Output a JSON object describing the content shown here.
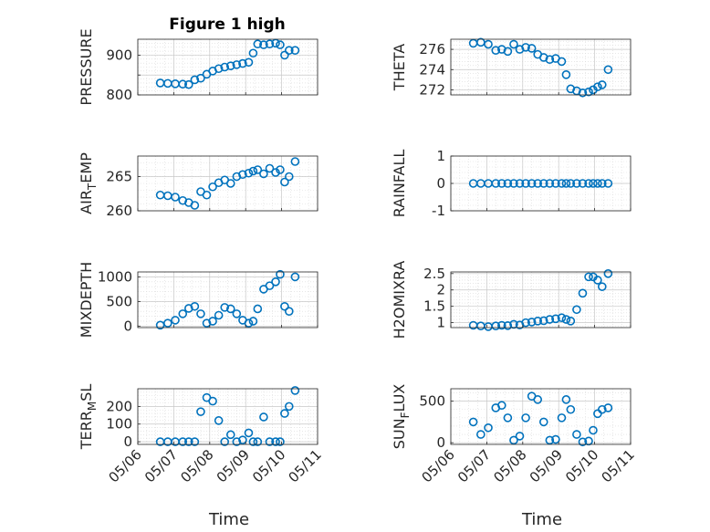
{
  "figure": {
    "title": "Figure 1 high",
    "x_tick_labels": [
      "05/06",
      "05/07",
      "05/08",
      "05/09",
      "05/10",
      "05/11"
    ],
    "x_label": "Time"
  },
  "chart_data": [
    {
      "type": "scatter",
      "ylabel": "PRESSURE",
      "yticks": [
        800,
        850,
        900
      ],
      "ytick_labels": [
        "800",
        "",
        "900"
      ],
      "ylim": [
        800,
        940
      ],
      "xlim": [
        "05/06",
        "05/11"
      ],
      "grid": true,
      "marker": "circle",
      "color": "#0072BD",
      "x": [
        "05/06 15:00",
        "05/06 20:00",
        "05/07 01:00",
        "05/07 06:00",
        "05/07 10:00",
        "05/07 14:00",
        "05/07 18:00",
        "05/07 22:00",
        "05/08 02:00",
        "05/08 06:00",
        "05/08 10:00",
        "05/08 14:00",
        "05/08 18:00",
        "05/08 22:00",
        "05/09 02:00",
        "05/09 05:00",
        "05/09 08:00",
        "05/09 12:00",
        "05/09 16:00",
        "05/09 20:00",
        "05/09 23:00",
        "05/10 02:00",
        "05/10 05:00",
        "05/10 09:00"
      ],
      "y": [
        830,
        829,
        828,
        827,
        826,
        838,
        842,
        852,
        860,
        866,
        870,
        873,
        876,
        879,
        882,
        905,
        928,
        926,
        928,
        930,
        926,
        900,
        912,
        912
      ]
    },
    {
      "type": "scatter",
      "ylabel": "THETA",
      "yticks": [
        272,
        274,
        276
      ],
      "ytick_labels": [
        "272",
        "274",
        "276"
      ],
      "ylim": [
        271.5,
        277
      ],
      "xlim": [
        "05/06",
        "05/11"
      ],
      "grid": true,
      "marker": "circle",
      "color": "#0072BD",
      "x": [
        "05/06 15:00",
        "05/06 20:00",
        "05/07 01:00",
        "05/07 06:00",
        "05/07 10:00",
        "05/07 14:00",
        "05/07 18:00",
        "05/07 22:00",
        "05/08 02:00",
        "05/08 06:00",
        "05/08 10:00",
        "05/08 14:00",
        "05/08 18:00",
        "05/08 22:00",
        "05/09 02:00",
        "05/09 05:00",
        "05/09 08:00",
        "05/09 12:00",
        "05/09 16:00",
        "05/09 20:00",
        "05/09 23:00",
        "05/10 02:00",
        "05/10 05:00",
        "05/10 09:00"
      ],
      "y": [
        276.6,
        276.7,
        276.5,
        275.9,
        276.0,
        275.8,
        276.5,
        276.0,
        276.2,
        276.1,
        275.5,
        275.2,
        275.0,
        275.1,
        274.8,
        273.5,
        272.1,
        271.9,
        271.7,
        271.8,
        272.0,
        272.3,
        272.5,
        274.0
      ]
    },
    {
      "type": "scatter",
      "ylabel": "AIR_TEMP",
      "yticks": [
        260,
        265
      ],
      "ytick_labels": [
        "260",
        "265"
      ],
      "ylim": [
        260,
        268
      ],
      "xlim": [
        "05/06",
        "05/11"
      ],
      "grid": true,
      "marker": "circle",
      "color": "#0072BD",
      "x": [
        "05/06 15:00",
        "05/06 20:00",
        "05/07 01:00",
        "05/07 06:00",
        "05/07 10:00",
        "05/07 14:00",
        "05/07 18:00",
        "05/07 22:00",
        "05/08 02:00",
        "05/08 06:00",
        "05/08 10:00",
        "05/08 14:00",
        "05/08 18:00",
        "05/08 22:00",
        "05/09 02:00",
        "05/09 05:00",
        "05/09 08:00",
        "05/09 12:00",
        "05/09 16:00",
        "05/09 20:00",
        "05/09 23:00",
        "05/10 02:00",
        "05/10 05:00",
        "05/10 09:00"
      ],
      "y": [
        262.3,
        262.2,
        262.0,
        261.5,
        261.2,
        260.8,
        262.8,
        262.3,
        263.5,
        264.1,
        264.5,
        264.0,
        265.0,
        265.3,
        265.5,
        265.8,
        266.0,
        265.4,
        266.2,
        265.6,
        266.0,
        264.2,
        265.0,
        267.2
      ]
    },
    {
      "type": "scatter",
      "ylabel": "RAINFALL",
      "yticks": [
        -1,
        0,
        1
      ],
      "ytick_labels": [
        "-1",
        "0",
        "1"
      ],
      "ylim": [
        -1,
        1
      ],
      "xlim": [
        "05/06",
        "05/11"
      ],
      "grid": true,
      "marker": "circle",
      "color": "#0072BD",
      "x": [
        "05/06 15:00",
        "05/06 20:00",
        "05/07 01:00",
        "05/07 06:00",
        "05/07 10:00",
        "05/07 14:00",
        "05/07 18:00",
        "05/07 22:00",
        "05/08 02:00",
        "05/08 06:00",
        "05/08 10:00",
        "05/08 14:00",
        "05/08 18:00",
        "05/08 22:00",
        "05/09 02:00",
        "05/09 05:00",
        "05/09 08:00",
        "05/09 12:00",
        "05/09 16:00",
        "05/09 20:00",
        "05/09 23:00",
        "05/10 02:00",
        "05/10 05:00",
        "05/10 09:00"
      ],
      "y": [
        0,
        0,
        0,
        0,
        0,
        0,
        0,
        0,
        0,
        0,
        0,
        0,
        0,
        0,
        0,
        0,
        0,
        0,
        0,
        0,
        0,
        0,
        0,
        0
      ]
    },
    {
      "type": "scatter",
      "ylabel": "MIXDEPTH",
      "yticks": [
        0,
        500,
        1000
      ],
      "ytick_labels": [
        "0",
        "500",
        "1000"
      ],
      "ylim": [
        -30,
        1100
      ],
      "xlim": [
        "05/06",
        "05/11"
      ],
      "grid": true,
      "marker": "circle",
      "color": "#0072BD",
      "x": [
        "05/06 15:00",
        "05/06 20:00",
        "05/07 01:00",
        "05/07 06:00",
        "05/07 10:00",
        "05/07 14:00",
        "05/07 18:00",
        "05/07 22:00",
        "05/08 02:00",
        "05/08 06:00",
        "05/08 10:00",
        "05/08 14:00",
        "05/08 18:00",
        "05/08 22:00",
        "05/09 02:00",
        "05/09 05:00",
        "05/09 08:00",
        "05/09 12:00",
        "05/09 16:00",
        "05/09 20:00",
        "05/09 23:00",
        "05/10 02:00",
        "05/10 05:00",
        "05/10 09:00"
      ],
      "y": [
        20,
        60,
        120,
        250,
        360,
        400,
        250,
        60,
        100,
        220,
        380,
        350,
        250,
        120,
        60,
        100,
        350,
        750,
        820,
        900,
        1050,
        400,
        300,
        1000
      ]
    },
    {
      "type": "scatter",
      "ylabel": "H2OMIXRA",
      "yticks": [
        1,
        1.5,
        2,
        2.5
      ],
      "ytick_labels": [
        "1",
        "1.5",
        "2",
        "2.5"
      ],
      "ylim": [
        0.85,
        2.55
      ],
      "xlim": [
        "05/06",
        "05/11"
      ],
      "grid": true,
      "marker": "circle",
      "color": "#0072BD",
      "x": [
        "05/06 15:00",
        "05/06 20:00",
        "05/07 01:00",
        "05/07 06:00",
        "05/07 10:00",
        "05/07 14:00",
        "05/07 18:00",
        "05/07 22:00",
        "05/08 02:00",
        "05/08 06:00",
        "05/08 10:00",
        "05/08 14:00",
        "05/08 18:00",
        "05/08 22:00",
        "05/09 02:00",
        "05/09 05:00",
        "05/09 08:00",
        "05/09 12:00",
        "05/09 16:00",
        "05/09 20:00",
        "05/09 23:00",
        "05/10 02:00",
        "05/10 05:00",
        "05/10 09:00"
      ],
      "y": [
        0.92,
        0.9,
        0.88,
        0.9,
        0.92,
        0.91,
        0.95,
        0.93,
        1.0,
        1.02,
        1.05,
        1.06,
        1.1,
        1.12,
        1.15,
        1.1,
        1.05,
        1.4,
        1.9,
        2.4,
        2.4,
        2.3,
        2.1,
        2.5
      ]
    },
    {
      "type": "scatter",
      "ylabel": "TERR_MSL",
      "yticks": [
        0,
        100,
        200
      ],
      "ytick_labels": [
        "0",
        "100",
        "200"
      ],
      "ylim": [
        -15,
        300
      ],
      "xlim": [
        "05/06",
        "05/11"
      ],
      "grid": true,
      "marker": "circle",
      "color": "#0072BD",
      "x": [
        "05/06 15:00",
        "05/06 20:00",
        "05/07 01:00",
        "05/07 06:00",
        "05/07 10:00",
        "05/07 14:00",
        "05/07 18:00",
        "05/07 22:00",
        "05/08 02:00",
        "05/08 06:00",
        "05/08 10:00",
        "05/08 14:00",
        "05/08 18:00",
        "05/08 22:00",
        "05/09 02:00",
        "05/09 05:00",
        "05/09 08:00",
        "05/09 12:00",
        "05/09 16:00",
        "05/09 20:00",
        "05/09 23:00",
        "05/10 02:00",
        "05/10 05:00",
        "05/10 09:00"
      ],
      "y": [
        0,
        0,
        0,
        0,
        0,
        0,
        170,
        250,
        230,
        120,
        0,
        40,
        0,
        10,
        50,
        0,
        0,
        140,
        0,
        0,
        0,
        160,
        200,
        290
      ]
    },
    {
      "type": "scatter",
      "ylabel": "SUN_FLUX",
      "yticks": [
        0,
        500
      ],
      "ytick_labels": [
        "0",
        "500"
      ],
      "ylim": [
        -20,
        650
      ],
      "xlim": [
        "05/06",
        "05/11"
      ],
      "grid": true,
      "marker": "circle",
      "color": "#0072BD",
      "x": [
        "05/06 15:00",
        "05/06 20:00",
        "05/07 01:00",
        "05/07 06:00",
        "05/07 10:00",
        "05/07 14:00",
        "05/07 18:00",
        "05/07 22:00",
        "05/08 02:00",
        "05/08 06:00",
        "05/08 10:00",
        "05/08 14:00",
        "05/08 18:00",
        "05/08 22:00",
        "05/09 02:00",
        "05/09 05:00",
        "05/09 08:00",
        "05/09 12:00",
        "05/09 16:00",
        "05/09 20:00",
        "05/09 23:00",
        "05/10 02:00",
        "05/10 05:00",
        "05/10 09:00"
      ],
      "y": [
        250,
        100,
        180,
        420,
        450,
        300,
        30,
        80,
        300,
        560,
        520,
        250,
        30,
        40,
        300,
        520,
        400,
        100,
        10,
        20,
        150,
        350,
        400,
        420
      ]
    }
  ]
}
